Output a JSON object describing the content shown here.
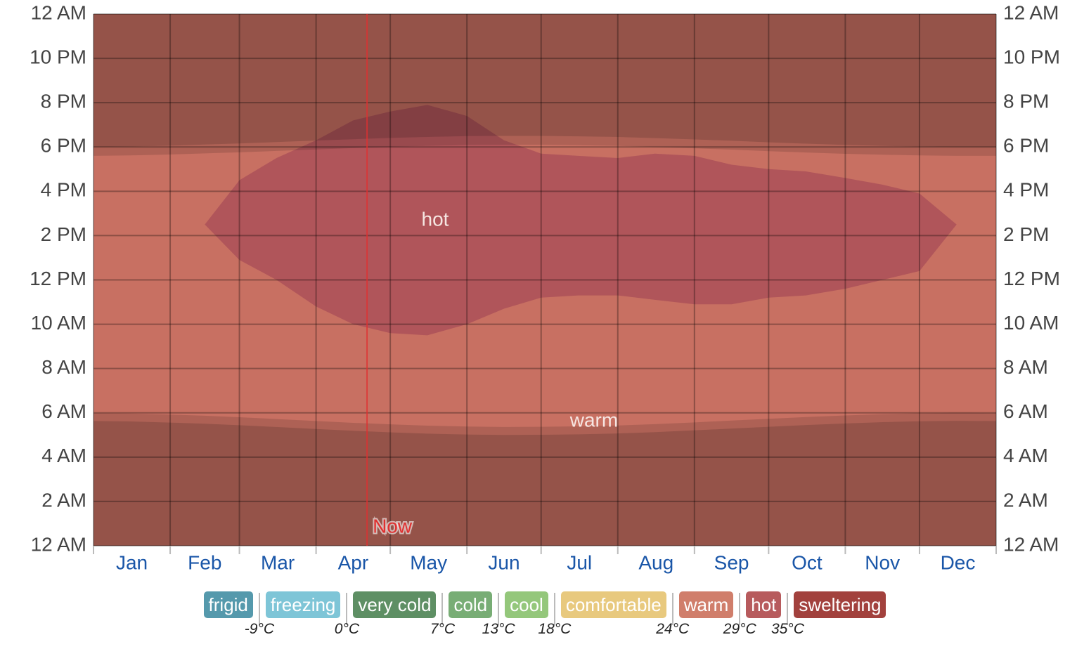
{
  "chart_data": {
    "type": "time-of-day-bands",
    "xlim": [
      0,
      365
    ],
    "xticks": [
      0,
      31,
      59,
      90,
      120,
      151,
      181,
      212,
      243,
      273,
      304,
      334,
      365
    ],
    "categories": [
      "Jan",
      "Feb",
      "Mar",
      "Apr",
      "May",
      "Jun",
      "Jul",
      "Aug",
      "Sep",
      "Oct",
      "Nov",
      "Dec"
    ],
    "ylim": [
      0,
      24
    ],
    "yticks": [
      {
        "value": 0,
        "label": "12 AM"
      },
      {
        "value": 2,
        "label": "2 AM"
      },
      {
        "value": 4,
        "label": "4 AM"
      },
      {
        "value": 6,
        "label": "6 AM"
      },
      {
        "value": 8,
        "label": "8 AM"
      },
      {
        "value": 10,
        "label": "10 AM"
      },
      {
        "value": 12,
        "label": "12 PM"
      },
      {
        "value": 14,
        "label": "2 PM"
      },
      {
        "value": 16,
        "label": "4 PM"
      },
      {
        "value": 18,
        "label": "6 PM"
      },
      {
        "value": 20,
        "label": "8 PM"
      },
      {
        "value": 22,
        "label": "10 PM"
      },
      {
        "value": 24,
        "label": "12 AM"
      }
    ],
    "grid": true,
    "x": [
      0,
      15,
      31,
      45,
      59,
      74,
      90,
      105,
      120,
      135,
      151,
      166,
      181,
      196,
      212,
      227,
      243,
      258,
      273,
      288,
      304,
      319,
      334,
      349,
      365
    ],
    "regions": [
      {
        "name": "warm",
        "color": "#c87062",
        "lower": [
          0,
          0,
          0,
          0,
          0,
          0,
          0,
          0,
          0,
          0,
          0,
          0,
          0,
          0,
          0,
          0,
          0,
          0,
          0,
          0,
          0,
          0,
          0,
          0,
          0
        ],
        "upper": [
          24,
          24,
          24,
          24,
          24,
          24,
          24,
          24,
          24,
          24,
          24,
          24,
          24,
          24,
          24,
          24,
          24,
          24,
          24,
          24,
          24,
          24,
          24,
          24,
          24
        ]
      },
      {
        "name": "hot",
        "color": "#b0555a",
        "lower": [
          null,
          null,
          null,
          14.5,
          12.9,
          12.0,
          10.8,
          10.0,
          9.6,
          9.5,
          10.0,
          10.7,
          11.2,
          11.3,
          11.3,
          11.1,
          10.9,
          10.9,
          11.2,
          11.3,
          11.6,
          12.0,
          12.4,
          14.5,
          null
        ],
        "upper": [
          null,
          null,
          null,
          14.5,
          16.5,
          17.5,
          18.3,
          19.2,
          19.6,
          19.9,
          19.4,
          18.3,
          17.7,
          17.6,
          17.5,
          17.7,
          17.6,
          17.2,
          17.0,
          16.9,
          16.6,
          16.3,
          15.9,
          14.5,
          null
        ]
      }
    ],
    "night": {
      "color": "#000000",
      "opacity": 0.255,
      "twilight_opacity": 0.13,
      "dawn": [
        5.63,
        5.61,
        5.56,
        5.51,
        5.44,
        5.36,
        5.27,
        5.19,
        5.12,
        5.06,
        5.02,
        5.0,
        5.01,
        5.03,
        5.07,
        5.13,
        5.21,
        5.29,
        5.37,
        5.45,
        5.52,
        5.58,
        5.62,
        5.64,
        5.63
      ],
      "sunrise": [
        5.99,
        5.97,
        5.92,
        5.87,
        5.8,
        5.72,
        5.63,
        5.55,
        5.48,
        5.42,
        5.38,
        5.36,
        5.37,
        5.39,
        5.43,
        5.49,
        5.57,
        5.65,
        5.73,
        5.81,
        5.88,
        5.94,
        5.98,
        6.0,
        5.99
      ],
      "sunset": [
        17.6,
        17.62,
        17.66,
        17.71,
        17.76,
        17.82,
        17.89,
        17.95,
        18.01,
        18.05,
        18.09,
        18.1,
        18.1,
        18.08,
        18.05,
        18.0,
        17.94,
        17.88,
        17.81,
        17.75,
        17.69,
        17.65,
        17.62,
        17.6,
        17.6
      ],
      "dusk": [
        18.0,
        18.02,
        18.06,
        18.11,
        18.16,
        18.22,
        18.29,
        18.35,
        18.41,
        18.45,
        18.49,
        18.5,
        18.5,
        18.48,
        18.45,
        18.4,
        18.34,
        18.28,
        18.21,
        18.15,
        18.09,
        18.05,
        18.02,
        18.0,
        18.0
      ]
    },
    "now": {
      "label": "Now",
      "value": 110.6,
      "color": "#e03030"
    },
    "legend": {
      "items": [
        {
          "name": "frigid",
          "color": "#5599ac"
        },
        {
          "name": "freezing",
          "color": "#7ec5d7"
        },
        {
          "name": "very cold",
          "color": "#5e8f64"
        },
        {
          "name": "cold",
          "color": "#78ad75"
        },
        {
          "name": "cool",
          "color": "#94c77b"
        },
        {
          "name": "comfortable",
          "color": "#e8c97e"
        },
        {
          "name": "warm",
          "color": "#d07e6b"
        },
        {
          "name": "hot",
          "color": "#b75b5d"
        },
        {
          "name": "sweltering",
          "color": "#a2413d"
        }
      ],
      "thresholds": [
        {
          "value": -9,
          "label": "-9°C"
        },
        {
          "value": 0,
          "label": "0°C"
        },
        {
          "value": 7,
          "label": "7°C"
        },
        {
          "value": 13,
          "label": "13°C"
        },
        {
          "value": 18,
          "label": "18°C"
        },
        {
          "value": 24,
          "label": "24°C"
        },
        {
          "value": 29,
          "label": "29°C"
        },
        {
          "value": 35,
          "label": "35°C"
        }
      ]
    }
  }
}
